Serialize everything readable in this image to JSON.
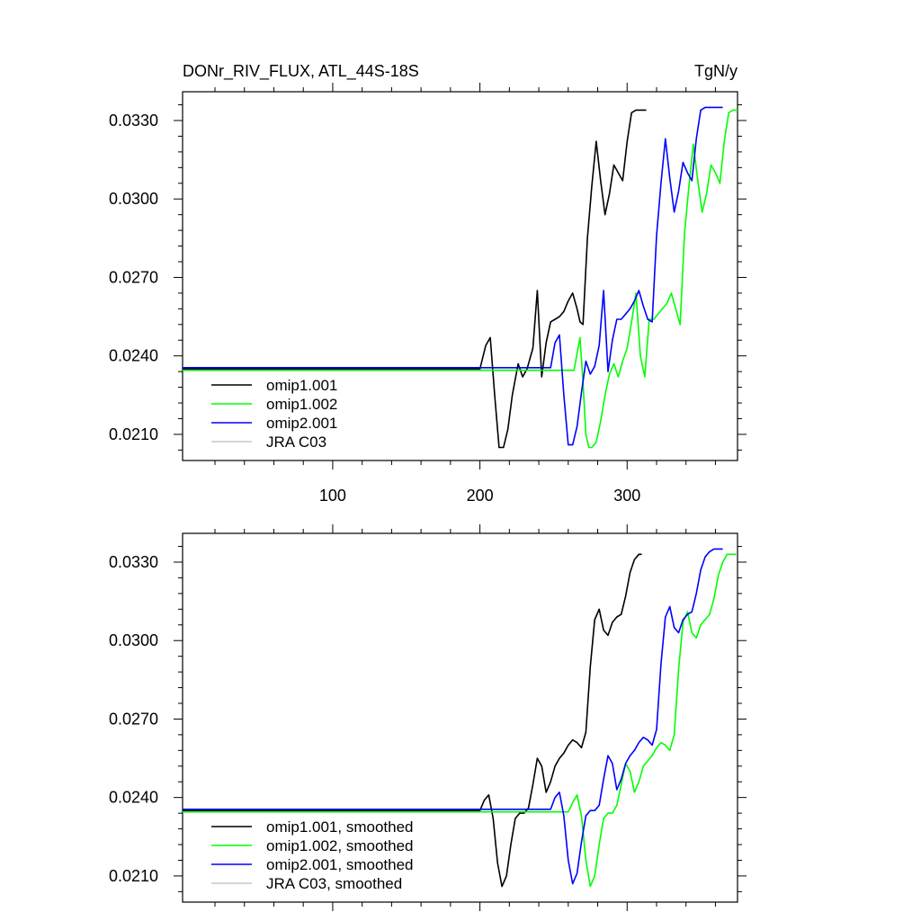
{
  "chart_data": [
    {
      "type": "line",
      "title": "DONr_RIV_FLUX, ATL_44S-18S",
      "units": "TgN/y",
      "xlim": [
        -2,
        375
      ],
      "ylim": [
        0.02,
        0.0341
      ],
      "xticks": [
        100,
        200,
        300
      ],
      "xtick_labels": [
        "100",
        "200",
        "300"
      ],
      "yticks": [
        0.021,
        0.024,
        0.027,
        0.03,
        0.033
      ],
      "ytick_labels": [
        "0.0210",
        "0.0240",
        "0.0270",
        "0.0300",
        "0.0330"
      ],
      "legend_placement": "lower-left",
      "series": [
        {
          "name": "omip1.001",
          "color": "#000000",
          "x": [
            -2,
            200,
            204,
            207,
            210,
            213,
            216,
            219,
            222,
            226,
            229,
            232,
            236,
            239,
            242,
            245,
            248,
            251,
            254,
            257,
            260,
            263,
            266,
            268,
            270,
            273,
            276,
            279,
            282,
            285,
            288,
            291,
            294,
            297,
            300,
            303,
            306,
            310,
            313
          ],
          "y": [
            0.0235,
            0.0235,
            0.0244,
            0.0247,
            0.0225,
            0.0205,
            0.0205,
            0.0212,
            0.0225,
            0.0237,
            0.0232,
            0.0235,
            0.0243,
            0.0265,
            0.0232,
            0.0245,
            0.0253,
            0.0254,
            0.0255,
            0.0257,
            0.0261,
            0.0264,
            0.0258,
            0.0253,
            0.0252,
            0.0285,
            0.0305,
            0.0322,
            0.0307,
            0.0294,
            0.0302,
            0.0313,
            0.031,
            0.0307,
            0.0322,
            0.0333,
            0.0334,
            0.0334,
            0.0334
          ]
        },
        {
          "name": "omip1.002",
          "color": "#00ff00",
          "x": [
            -2,
            262,
            264,
            266,
            268,
            270,
            272,
            274,
            276,
            279,
            282,
            285,
            288,
            291,
            294,
            297,
            300,
            303,
            306,
            309,
            312,
            315,
            318,
            321,
            324,
            327,
            330,
            333,
            336,
            339,
            342,
            345,
            348,
            351,
            354,
            357,
            360,
            363,
            366,
            369,
            372,
            375
          ],
          "y": [
            0.02345,
            0.02345,
            0.02345,
            0.0241,
            0.0247,
            0.023,
            0.021,
            0.0205,
            0.0205,
            0.0207,
            0.0215,
            0.0225,
            0.0233,
            0.0237,
            0.0232,
            0.0238,
            0.0243,
            0.0253,
            0.0264,
            0.024,
            0.0232,
            0.0254,
            0.0254,
            0.0256,
            0.0258,
            0.026,
            0.0264,
            0.0258,
            0.0252,
            0.0287,
            0.0305,
            0.0321,
            0.0307,
            0.0295,
            0.0302,
            0.0313,
            0.031,
            0.0306,
            0.0322,
            0.0333,
            0.0334,
            0.0334
          ]
        },
        {
          "name": "omip2.001",
          "color": "#0000ff",
          "x": [
            -2,
            248,
            251,
            254,
            257,
            260,
            263,
            266,
            269,
            272,
            275,
            278,
            281,
            284,
            287,
            290,
            293,
            296,
            299,
            302,
            305,
            308,
            311,
            314,
            317,
            320,
            323,
            326,
            329,
            332,
            335,
            338,
            341,
            344,
            347,
            350,
            353,
            356,
            359,
            362,
            365
          ],
          "y": [
            0.02355,
            0.02355,
            0.0245,
            0.0248,
            0.0225,
            0.0206,
            0.0206,
            0.0213,
            0.0226,
            0.0238,
            0.0233,
            0.0236,
            0.0244,
            0.0265,
            0.0234,
            0.0246,
            0.0254,
            0.0254,
            0.0256,
            0.0258,
            0.0261,
            0.0265,
            0.0259,
            0.0254,
            0.0253,
            0.0286,
            0.0306,
            0.0323,
            0.0308,
            0.0295,
            0.0303,
            0.0314,
            0.031,
            0.0307,
            0.0323,
            0.0334,
            0.0335,
            0.0335,
            0.0335,
            0.0335,
            0.0335
          ]
        },
        {
          "name": "JRA C03",
          "color": "#c8c8c8",
          "x": [],
          "y": []
        }
      ]
    },
    {
      "type": "line",
      "title": "",
      "xlim": [
        -2,
        375
      ],
      "ylim": [
        0.02,
        0.0341
      ],
      "xticks": [
        100,
        200,
        300
      ],
      "xtick_labels": [],
      "yticks": [
        0.021,
        0.024,
        0.027,
        0.03,
        0.033
      ],
      "ytick_labels": [
        "0.0210",
        "0.0240",
        "0.0270",
        "0.0300",
        "0.0330"
      ],
      "legend_placement": "lower-left",
      "series": [
        {
          "name": "omip1.001, smoothed",
          "color": "#000000",
          "x": [
            -2,
            200,
            203,
            206,
            209,
            212,
            215,
            218,
            221,
            224,
            227,
            230,
            233,
            236,
            239,
            242,
            245,
            248,
            251,
            254,
            257,
            260,
            263,
            266,
            269,
            272,
            275,
            278,
            281,
            284,
            287,
            290,
            293,
            296,
            299,
            302,
            305,
            308,
            310
          ],
          "y": [
            0.0235,
            0.0235,
            0.0239,
            0.0241,
            0.0232,
            0.0215,
            0.0206,
            0.021,
            0.0222,
            0.0232,
            0.0234,
            0.0234,
            0.0236,
            0.0245,
            0.0255,
            0.0252,
            0.0242,
            0.0246,
            0.0252,
            0.0255,
            0.0257,
            0.026,
            0.0262,
            0.0261,
            0.0259,
            0.0265,
            0.029,
            0.0308,
            0.0312,
            0.0304,
            0.0302,
            0.0307,
            0.0309,
            0.031,
            0.0317,
            0.0326,
            0.0331,
            0.0333,
            0.0333
          ]
        },
        {
          "name": "omip1.002, smoothed",
          "color": "#00ff00",
          "x": [
            -2,
            260,
            263,
            266,
            269,
            272,
            275,
            278,
            281,
            284,
            287,
            290,
            293,
            296,
            299,
            302,
            305,
            308,
            311,
            314,
            317,
            320,
            323,
            326,
            329,
            332,
            335,
            338,
            341,
            344,
            347,
            350,
            353,
            356,
            359,
            362,
            365,
            368,
            371,
            374
          ],
          "y": [
            0.02345,
            0.02345,
            0.0238,
            0.0241,
            0.0233,
            0.0216,
            0.0206,
            0.021,
            0.0222,
            0.0232,
            0.0234,
            0.0234,
            0.0237,
            0.0245,
            0.0253,
            0.025,
            0.0242,
            0.0246,
            0.0252,
            0.0254,
            0.0256,
            0.0259,
            0.0261,
            0.026,
            0.0258,
            0.0264,
            0.0289,
            0.0307,
            0.0311,
            0.0303,
            0.0301,
            0.0306,
            0.0308,
            0.031,
            0.0316,
            0.0325,
            0.033,
            0.0333,
            0.0333,
            0.0333
          ]
        },
        {
          "name": "omip2.001, smoothed",
          "color": "#0000ff",
          "x": [
            -2,
            248,
            251,
            254,
            257,
            260,
            263,
            266,
            269,
            272,
            275,
            278,
            281,
            284,
            287,
            290,
            293,
            296,
            299,
            302,
            305,
            308,
            311,
            314,
            317,
            320,
            323,
            326,
            329,
            332,
            335,
            338,
            341,
            344,
            347,
            350,
            353,
            356,
            359,
            362,
            365
          ],
          "y": [
            0.02355,
            0.02355,
            0.024,
            0.0242,
            0.0233,
            0.0216,
            0.0207,
            0.0211,
            0.0223,
            0.0233,
            0.0235,
            0.0235,
            0.0237,
            0.0247,
            0.0256,
            0.0253,
            0.0243,
            0.0247,
            0.0253,
            0.0256,
            0.0258,
            0.0261,
            0.0263,
            0.0262,
            0.026,
            0.0266,
            0.0291,
            0.0309,
            0.0313,
            0.0305,
            0.0303,
            0.0308,
            0.031,
            0.0311,
            0.0318,
            0.0327,
            0.0332,
            0.0334,
            0.0335,
            0.0335,
            0.0335
          ]
        },
        {
          "name": "JRA C03, smoothed",
          "color": "#c8c8c8",
          "x": [],
          "y": []
        }
      ]
    }
  ]
}
